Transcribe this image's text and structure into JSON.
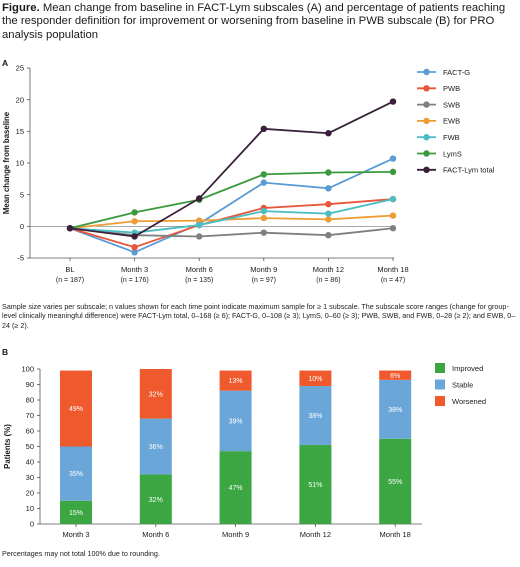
{
  "figure": {
    "title_bold": "Figure.",
    "title_text": "Mean change from baseline in FACT-Lym subscales (A) and percentage of patients reaching the responder definition for improvement or worsening from baseline in PWB subscale (B) for PRO analysis population"
  },
  "panel_a": {
    "label": "A",
    "note": "Sample size varies per subscale; n values shown for each time point indicate maximum sample for ≥ 1 subscale. The subscale score ranges (change for group-level clinically meaningful difference) were FACT-Lym total, 0–168 (≥ 6); FACT-G, 0–108 (≥ 3); LymS, 0–60 (≥ 3); PWB, SWB, and FWB, 0–28 (≥ 2); and EWB, 0–24 (≥ 2)."
  },
  "panel_b": {
    "label": "B",
    "note": "Percentages may not total 100% due to rounding."
  },
  "chart_data": [
    {
      "type": "line",
      "title": "",
      "ylabel": "Mean change from baseline",
      "xlabel": "",
      "ylim": [
        -5,
        25
      ],
      "yticks": [
        -5,
        0,
        5,
        10,
        15,
        20,
        25
      ],
      "categories": [
        "BL",
        "Month 3",
        "Month 6",
        "Month 9",
        "Month 12",
        "Month 18"
      ],
      "category_n": [
        "(n = 187)",
        "(n = 176)",
        "(n = 135)",
        "(n = 97)",
        "(n = 86)",
        "(n = 47)"
      ],
      "grid": false,
      "legend": "top-right",
      "series": [
        {
          "name": "FACT-G",
          "color": "#5b9bd5",
          "values": [
            -0.3,
            -4.1,
            0.4,
            6.9,
            6.0,
            10.7
          ]
        },
        {
          "name": "PWB",
          "color": "#e8553a",
          "values": [
            -0.3,
            -3.3,
            0.2,
            2.9,
            3.5,
            4.3
          ]
        },
        {
          "name": "SWB",
          "color": "#7f7f7f",
          "values": [
            -0.3,
            -1.4,
            -1.6,
            -1.0,
            -1.4,
            -0.3
          ]
        },
        {
          "name": "EWB",
          "color": "#ed9c33",
          "values": [
            -0.3,
            0.8,
            0.9,
            1.3,
            1.1,
            1.7
          ]
        },
        {
          "name": "FWB",
          "color": "#4bbdc3",
          "values": [
            -0.3,
            -1.0,
            0.2,
            2.4,
            2.0,
            4.3
          ]
        },
        {
          "name": "LymS",
          "color": "#3b9a3e",
          "values": [
            -0.3,
            2.2,
            4.2,
            8.2,
            8.5,
            8.6
          ]
        },
        {
          "name": "FACT-Lym total",
          "color": "#3a1f3b",
          "values": [
            -0.3,
            -1.6,
            4.4,
            15.4,
            14.7,
            19.7
          ]
        }
      ]
    },
    {
      "type": "bar",
      "stacked": true,
      "title": "",
      "ylabel": "Patients (%)",
      "xlabel": "",
      "ylim": [
        0,
        100
      ],
      "yticks": [
        0,
        10,
        20,
        30,
        40,
        50,
        60,
        70,
        80,
        90,
        100
      ],
      "categories": [
        "Month 3",
        "Month 6",
        "Month 9",
        "Month 12",
        "Month 18"
      ],
      "legend": "right",
      "series": [
        {
          "name": "Improved",
          "color": "#3ba642",
          "values": [
            15,
            32,
            47,
            51,
            55
          ],
          "labels": [
            "15%",
            "32%",
            "47%",
            "51%",
            "55%"
          ]
        },
        {
          "name": "Stable",
          "color": "#6aa7d8",
          "values": [
            35,
            36,
            39,
            38,
            38
          ],
          "labels": [
            "35%",
            "36%",
            "39%",
            "38%",
            "38%"
          ]
        },
        {
          "name": "Worsened",
          "color": "#ee5a2e",
          "values": [
            49,
            32,
            13,
            10,
            6
          ],
          "labels": [
            "49%",
            "32%",
            "13%",
            "10%",
            "6%"
          ]
        }
      ]
    }
  ]
}
